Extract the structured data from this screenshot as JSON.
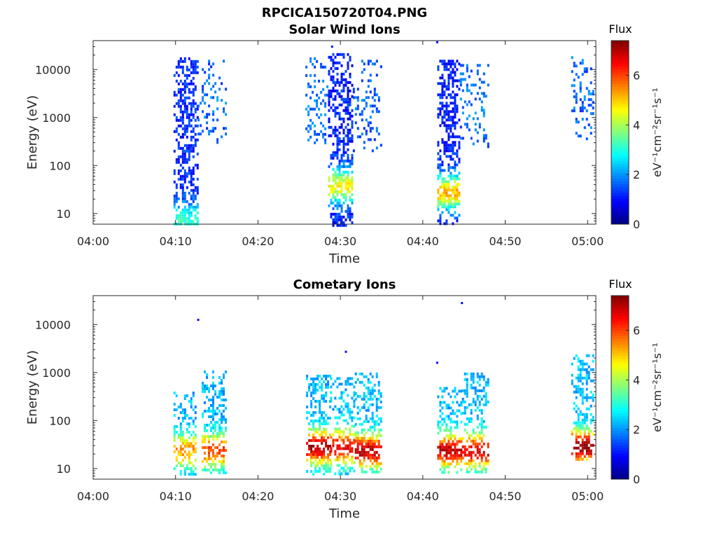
{
  "figure": {
    "title": "RPCICA150720T04.PNG"
  },
  "chart_data": [
    {
      "type": "heatmap",
      "title": "Solar Wind Ions",
      "xlabel": "Time",
      "ylabel": "Energy (eV)",
      "yscale": "log",
      "xlim": [
        "04:00",
        "05:01"
      ],
      "ylim": [
        6,
        40000
      ],
      "x_ticks": [
        "04:00",
        "04:10",
        "04:20",
        "04:30",
        "04:40",
        "04:50",
        "05:00"
      ],
      "y_ticks": [
        10,
        100,
        1000,
        10000
      ],
      "y_tick_labels": [
        "10",
        "100",
        "1000",
        "10000"
      ],
      "colorbar": {
        "title": "Flux",
        "label": "eV⁻¹cm⁻²sr⁻¹s⁻¹",
        "range": [
          0,
          7.4
        ],
        "ticks": [
          0,
          2,
          4,
          6
        ],
        "tick_labels": [
          "0",
          "2",
          "4",
          "6"
        ],
        "colormap": "jet"
      },
      "blobs": [
        {
          "t_start": "04:09:45",
          "t_end": "04:12:40",
          "e_min": 6,
          "e_max": 18000,
          "peak_energy": 8,
          "peak_flux": 3.1,
          "flux_hi_e": 1.2,
          "density": 0.85
        },
        {
          "t_start": "04:12:40",
          "t_end": "04:16:00",
          "e_min": 300,
          "e_max": 16000,
          "peak_energy": 2000,
          "peak_flux": 1.8,
          "flux_hi_e": 1.6,
          "density": 0.25
        },
        {
          "t_start": "04:25:45",
          "t_end": "04:28:30",
          "e_min": 300,
          "e_max": 18000,
          "peak_energy": 2000,
          "peak_flux": 1.9,
          "flux_hi_e": 1.7,
          "density": 0.35
        },
        {
          "t_start": "04:28:30",
          "t_end": "04:31:30",
          "e_min": 6,
          "e_max": 22000,
          "peak_energy": 40,
          "peak_flux": 4.6,
          "flux_hi_e": 1.1,
          "density": 0.85
        },
        {
          "t_start": "04:31:30",
          "t_end": "04:35:00",
          "e_min": 200,
          "e_max": 16000,
          "peak_energy": 1500,
          "peak_flux": 1.7,
          "flux_hi_e": 1.5,
          "density": 0.3
        },
        {
          "t_start": "04:41:45",
          "t_end": "04:44:30",
          "e_min": 6,
          "e_max": 16000,
          "peak_energy": 30,
          "peak_flux": 5.2,
          "flux_hi_e": 1.1,
          "density": 0.85
        },
        {
          "t_start": "04:44:30",
          "t_end": "04:48:00",
          "e_min": 250,
          "e_max": 13000,
          "peak_energy": 2000,
          "peak_flux": 1.8,
          "flux_hi_e": 1.6,
          "density": 0.25
        },
        {
          "t_start": "04:58:00",
          "t_end": "05:00:45",
          "e_min": 300,
          "e_max": 19000,
          "peak_energy": 3000,
          "peak_flux": 1.7,
          "flux_hi_e": 1.6,
          "density": 0.3
        }
      ],
      "isolated_points": [
        {
          "time": "04:29:00",
          "energy": 30000,
          "flux": 1.0
        },
        {
          "time": "04:41:45",
          "energy": 37000,
          "flux": 1.0
        }
      ]
    },
    {
      "type": "heatmap",
      "title": "Cometary Ions",
      "xlabel": "Time",
      "ylabel": "Energy (eV)",
      "yscale": "log",
      "xlim": [
        "04:00",
        "05:01"
      ],
      "ylim": [
        6,
        40000
      ],
      "x_ticks": [
        "04:00",
        "04:10",
        "04:20",
        "04:30",
        "04:40",
        "04:50",
        "05:00"
      ],
      "y_ticks": [
        10,
        100,
        1000,
        10000
      ],
      "y_tick_labels": [
        "10",
        "100",
        "1000",
        "10000"
      ],
      "colorbar": {
        "title": "Flux",
        "label": "eV⁻¹cm⁻²sr⁻¹s⁻¹",
        "range": [
          0,
          7.4
        ],
        "ticks": [
          0,
          2,
          4,
          6
        ],
        "tick_labels": [
          "0",
          "2",
          "4",
          "6"
        ],
        "colormap": "jet"
      },
      "blobs": [
        {
          "t_start": "04:09:45",
          "t_end": "04:12:20",
          "e_min": 8,
          "e_max": 400,
          "peak_energy": 25,
          "peak_flux": 5.4,
          "flux_hi_e": 2.2,
          "density": 0.6
        },
        {
          "t_start": "04:13:10",
          "t_end": "04:16:00",
          "e_min": 8,
          "e_max": 1100,
          "peak_energy": 25,
          "peak_flux": 6.0,
          "flux_hi_e": 2.2,
          "density": 0.65
        },
        {
          "t_start": "04:25:50",
          "t_end": "04:28:45",
          "e_min": 8,
          "e_max": 900,
          "peak_energy": 30,
          "peak_flux": 7.1,
          "flux_hi_e": 2.3,
          "density": 0.75
        },
        {
          "t_start": "04:28:45",
          "t_end": "04:31:45",
          "e_min": 8,
          "e_max": 800,
          "peak_energy": 30,
          "peak_flux": 6.6,
          "flux_hi_e": 2.3,
          "density": 0.7
        },
        {
          "t_start": "04:31:45",
          "t_end": "04:35:00",
          "e_min": 8,
          "e_max": 1000,
          "peak_energy": 25,
          "peak_flux": 7.0,
          "flux_hi_e": 2.3,
          "density": 0.75
        },
        {
          "t_start": "04:41:45",
          "t_end": "04:44:45",
          "e_min": 8,
          "e_max": 500,
          "peak_energy": 25,
          "peak_flux": 6.9,
          "flux_hi_e": 2.3,
          "density": 0.7
        },
        {
          "t_start": "04:44:45",
          "t_end": "04:48:00",
          "e_min": 8,
          "e_max": 1000,
          "peak_energy": 25,
          "peak_flux": 6.8,
          "flux_hi_e": 2.3,
          "density": 0.7
        },
        {
          "t_start": "04:58:00",
          "t_end": "05:00:45",
          "e_min": 15,
          "e_max": 2400,
          "peak_energy": 30,
          "peak_flux": 7.3,
          "flux_hi_e": 2.3,
          "density": 0.7
        }
      ],
      "isolated_points": [
        {
          "time": "04:12:45",
          "energy": 12500,
          "flux": 1.0
        },
        {
          "time": "04:30:40",
          "energy": 2700,
          "flux": 1.0
        },
        {
          "time": "04:41:45",
          "energy": 1600,
          "flux": 1.0
        },
        {
          "time": "04:44:45",
          "energy": 28000,
          "flux": 1.0
        }
      ]
    }
  ]
}
